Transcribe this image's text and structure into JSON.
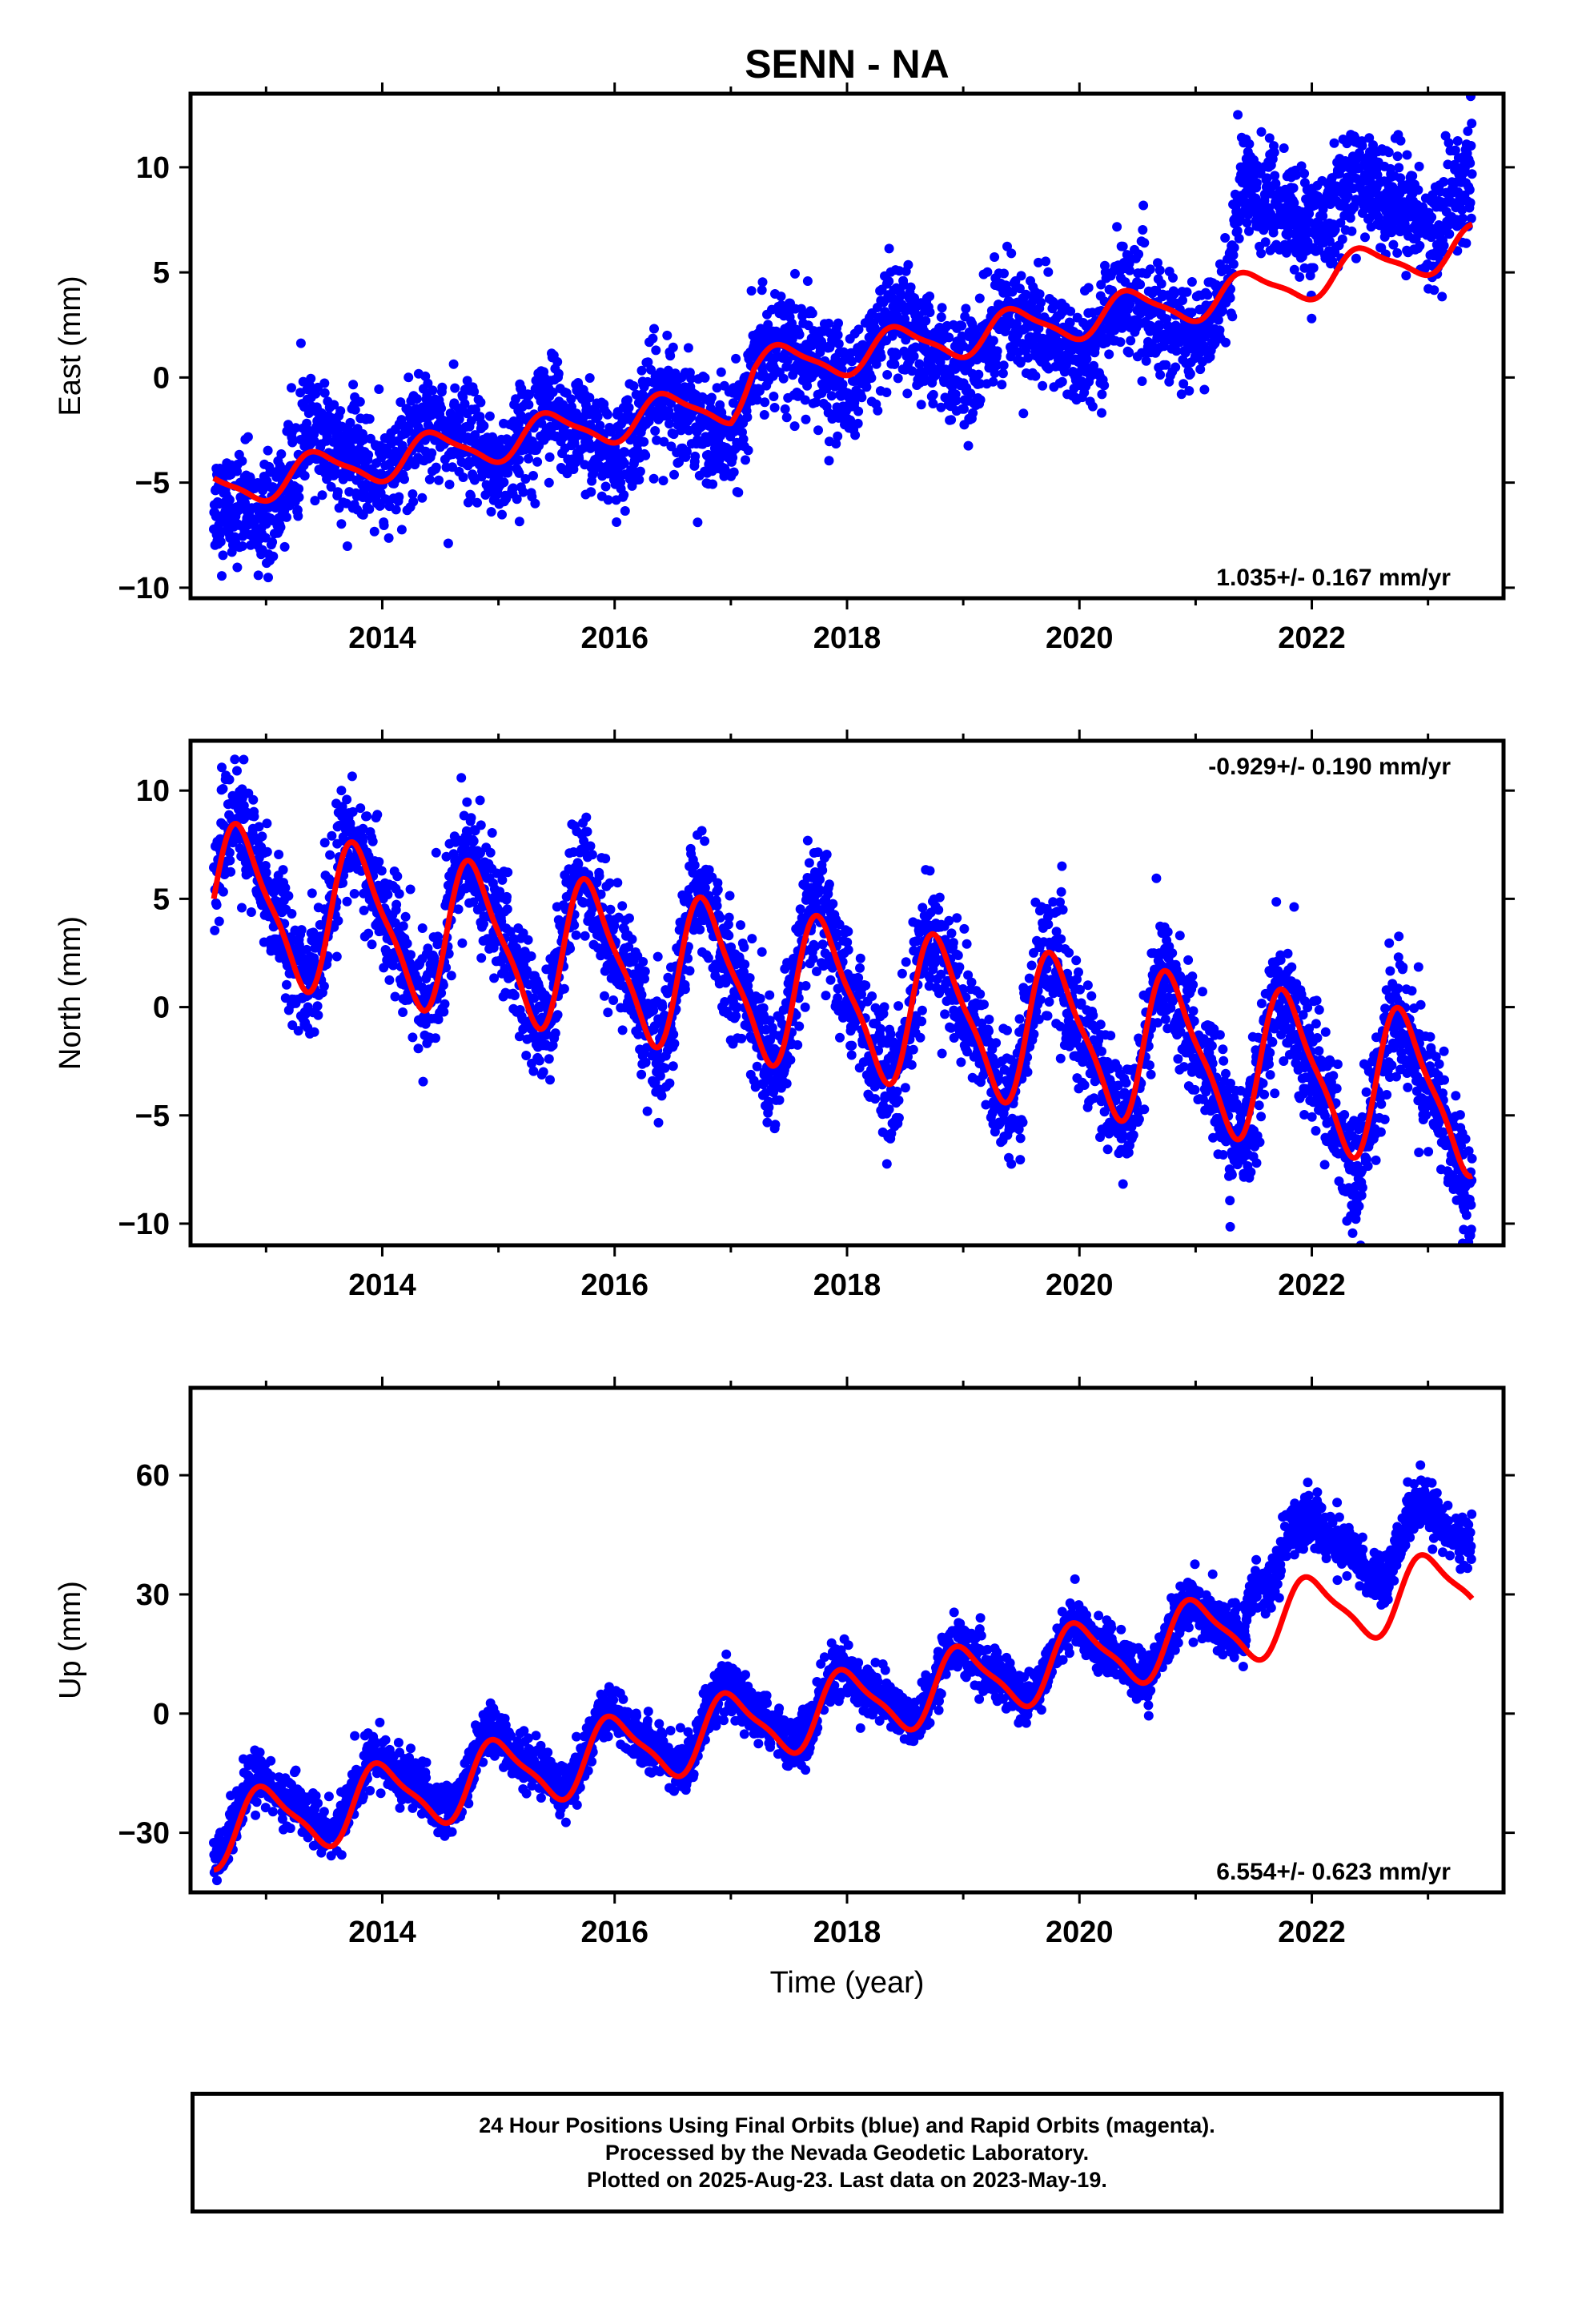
{
  "title": "SENN - NA",
  "xlabel": "Time (year)",
  "footer": {
    "line1": "24 Hour Positions Using Final Orbits (blue) and Rapid Orbits (magenta).",
    "line2": "Processed by the Nevada Geodetic Laboratory.",
    "line3": "Plotted on 2025-Aug-23. Last data on 2023-May-19."
  },
  "colors": {
    "points": "#0000ff",
    "fit": "#ff0000",
    "axes": "#000000"
  },
  "chart_data": [
    {
      "type": "scatter",
      "panel": "east",
      "ylabel": "East (mm)",
      "xlim": [
        2012.35,
        2023.65
      ],
      "ylim": [
        -10.5,
        13.5
      ],
      "xticks": [
        2014,
        2016,
        2018,
        2020,
        2022
      ],
      "yticks": [
        -10,
        -5,
        0,
        5,
        10
      ],
      "rate_text": "1.035+/- 0.167 mm/yr",
      "rate_position": "bottom-right",
      "data_range": [
        2012.55,
        2023.38
      ],
      "series": [
        {
          "name": "daily positions",
          "trend": [
            [
              2012.55,
              -6.5
            ],
            [
              2013.5,
              -3.8
            ],
            [
              2017.0,
              -1.8
            ],
            [
              2017.2,
              0.3
            ],
            [
              2019.0,
              1.5
            ],
            [
              2021.0,
              2.9
            ],
            [
              2021.3,
              3.9
            ],
            [
              2021.4,
              8.0
            ],
            [
              2023.38,
              8.5
            ]
          ],
          "seasonal_amplitude": 1.2,
          "scatter": 1.3
        },
        {
          "name": "model fit",
          "trend": [
            [
              2012.55,
              -5.3
            ],
            [
              2017.0,
              -1.2
            ],
            [
              2017.2,
              0.4
            ],
            [
              2021.4,
              4.0
            ],
            [
              2023.38,
              6.3
            ]
          ],
          "seasonal_amplitude": 0.9
        }
      ]
    },
    {
      "type": "scatter",
      "panel": "north",
      "ylabel": "North (mm)",
      "xlim": [
        2012.35,
        2023.65
      ],
      "ylim": [
        -11,
        12.3
      ],
      "xticks": [
        2014,
        2016,
        2018,
        2020,
        2022
      ],
      "yticks": [
        -10,
        -5,
        0,
        5,
        10
      ],
      "rate_text": "-0.929+/- 0.190 mm/yr",
      "rate_position": "top-right",
      "data_range": [
        2012.55,
        2023.38
      ],
      "series": [
        {
          "name": "daily positions",
          "trend": [
            [
              2012.55,
              5.4
            ],
            [
              2023.38,
              -4.6
            ]
          ],
          "seasonal_amplitude": 3.2,
          "scatter": 1.4
        },
        {
          "name": "model fit",
          "trend": [
            [
              2012.55,
              5.0
            ],
            [
              2023.38,
              -4.2
            ]
          ],
          "seasonal_amplitude": 3.3
        }
      ]
    },
    {
      "type": "scatter",
      "panel": "up",
      "ylabel": "Up (mm)",
      "xlim": [
        2012.35,
        2023.65
      ],
      "ylim": [
        -45,
        82
      ],
      "xticks": [
        2014,
        2016,
        2018,
        2020,
        2022
      ],
      "yticks": [
        -30,
        0,
        30,
        60
      ],
      "rate_text": "6.554+/- 0.623 mm/yr",
      "rate_position": "bottom-right",
      "data_range": [
        2012.55,
        2023.38
      ],
      "series": [
        {
          "name": "daily positions",
          "trend": [
            [
              2012.55,
              -27
            ],
            [
              2021.4,
              22
            ],
            [
              2021.5,
              40
            ],
            [
              2023.38,
              45
            ]
          ],
          "seasonal_amplitude": 7.5,
          "scatter": 3.2
        },
        {
          "name": "model fit",
          "trend": [
            [
              2012.55,
              -30
            ],
            [
              2021.4,
              22
            ],
            [
              2023.38,
              33
            ]
          ],
          "seasonal_amplitude": 8.5
        }
      ]
    }
  ]
}
